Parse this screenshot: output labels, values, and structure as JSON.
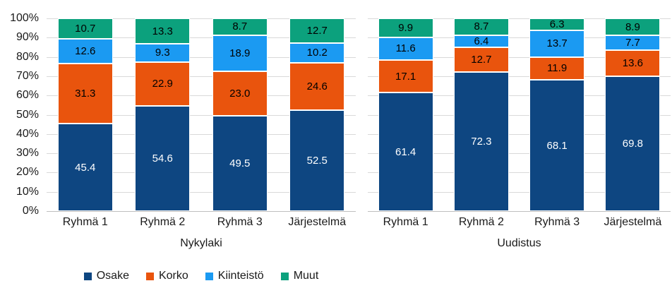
{
  "chart_data": {
    "type": "bar",
    "variant": "100-percent-stacked-column",
    "title": "",
    "xlabel": "",
    "ylabel": "",
    "y_axis": {
      "min": 0,
      "max": 100,
      "step": 10,
      "tick_labels": [
        "0%",
        "10%",
        "20%",
        "30%",
        "40%",
        "50%",
        "60%",
        "70%",
        "80%",
        "90%",
        "100%"
      ],
      "grid": true
    },
    "legend": {
      "position": "bottom-left",
      "items": [
        "Osake",
        "Korko",
        "Kiinteistö",
        "Muut"
      ]
    },
    "series": [
      {
        "name": "Osake",
        "color": "#0E4681",
        "label_color": "#ffffff"
      },
      {
        "name": "Korko",
        "color": "#E9540D",
        "label_color": "#000000"
      },
      {
        "name": "Kiinteistö",
        "color": "#1B9AF2",
        "label_color": "#000000"
      },
      {
        "name": "Muut",
        "color": "#0CA17D",
        "label_color": "#000000"
      }
    ],
    "groups": [
      {
        "label": "Nykylaki",
        "categories": [
          "Ryhmä 1",
          "Ryhmä 2",
          "Ryhmä 3",
          "Järjestelmä"
        ],
        "values": {
          "Osake": [
            45.4,
            54.6,
            49.5,
            52.5
          ],
          "Korko": [
            31.3,
            22.9,
            23.0,
            24.6
          ],
          "Kiinteistö": [
            12.6,
            9.3,
            18.9,
            10.2
          ],
          "Muut": [
            10.7,
            13.3,
            8.7,
            12.7
          ]
        }
      },
      {
        "label": "Uudistus",
        "categories": [
          "Ryhmä 1",
          "Ryhmä 2",
          "Ryhmä 3",
          "Järjestelmä"
        ],
        "values": {
          "Osake": [
            61.4,
            72.3,
            68.1,
            69.8
          ],
          "Korko": [
            17.1,
            12.7,
            11.9,
            13.6
          ],
          "Kiinteistö": [
            11.6,
            6.4,
            13.7,
            7.7
          ],
          "Muut": [
            9.9,
            8.7,
            6.3,
            8.9
          ]
        }
      }
    ],
    "value_label_decimals": 1,
    "colors": {
      "gridline": "#D9D9D9",
      "axis_line": "#BFBFBF",
      "text": "#1A1A1A",
      "background": "#FFFFFF"
    }
  }
}
